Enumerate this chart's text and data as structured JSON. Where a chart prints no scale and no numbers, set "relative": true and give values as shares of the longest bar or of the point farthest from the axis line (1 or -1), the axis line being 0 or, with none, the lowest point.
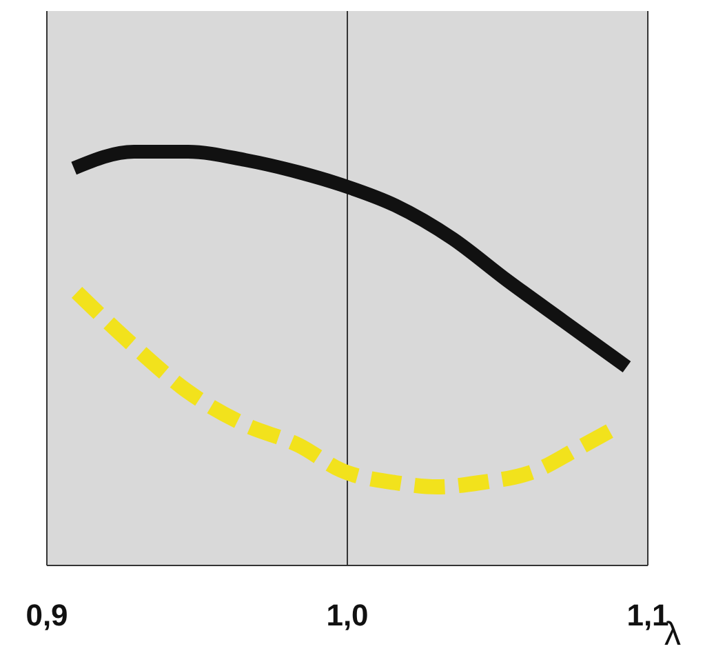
{
  "chart_data": {
    "type": "line",
    "relative": true,
    "xlabel": "λ",
    "xlim": [
      0.9,
      1.1
    ],
    "xticks": [
      {
        "value": 0.9,
        "label": "0,9"
      },
      {
        "value": 1.0,
        "label": "1,0"
      },
      {
        "value": 1.1,
        "label": "1,1"
      }
    ],
    "grid": "x",
    "marker": "none",
    "series": [
      {
        "color": "#111111",
        "line_style": "solid",
        "x": [
          0.909,
          0.929,
          0.947,
          0.966,
          0.984,
          0.998,
          1.016,
          1.035,
          1.053,
          1.072,
          1.093
        ],
        "values": [
          0.96,
          1,
          1,
          0.98,
          0.95,
          0.92,
          0.87,
          0.79,
          0.69,
          0.59,
          0.48
        ]
      },
      {
        "color": "#f2e21c",
        "line_style": "dashed",
        "x": [
          0.91,
          0.929,
          0.947,
          0.966,
          0.984,
          0.998,
          1.016,
          1.03,
          1.044,
          1.063,
          1.076,
          1.091
        ],
        "values": [
          0.66,
          0.53,
          0.42,
          0.34,
          0.29,
          0.23,
          0.2,
          0.19,
          0.2,
          0.23,
          0.28,
          0.34
        ]
      }
    ]
  }
}
